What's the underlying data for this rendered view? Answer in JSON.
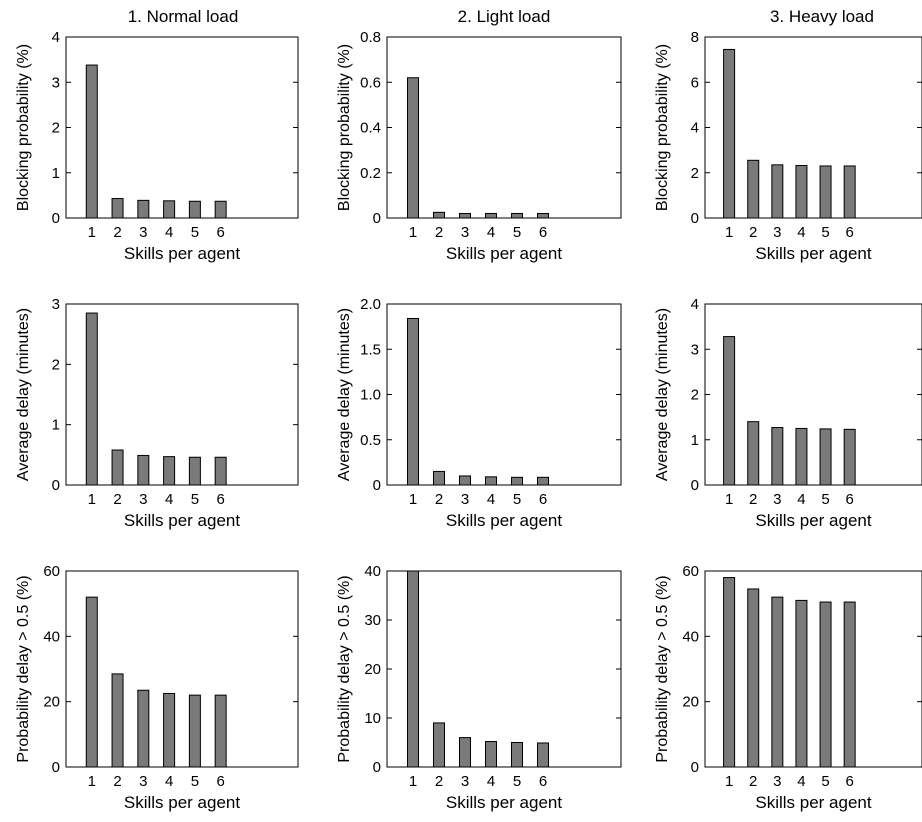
{
  "figure": {
    "column_titles": [
      "1. Normal load",
      "2. Light load",
      "3. Heavy load"
    ]
  },
  "chart_data": [
    {
      "type": "bar",
      "row": 0,
      "col": 0,
      "title": "1. Normal load",
      "xlabel": "Skills per agent",
      "ylabel": "Blocking probability (%)",
      "categories": [
        "1",
        "2",
        "3",
        "4",
        "5",
        "6"
      ],
      "values": [
        3.38,
        0.43,
        0.39,
        0.38,
        0.37,
        0.37
      ],
      "xlim": [
        0,
        9
      ],
      "ylim": [
        0,
        4
      ],
      "yticks": [
        "0",
        "1",
        "2",
        "3",
        "4"
      ],
      "grid": false
    },
    {
      "type": "bar",
      "row": 0,
      "col": 1,
      "title": "2. Light load",
      "xlabel": "Skills per agent",
      "ylabel": "Blocking probability (%)",
      "categories": [
        "1",
        "2",
        "3",
        "4",
        "5",
        "6"
      ],
      "values": [
        0.62,
        0.025,
        0.02,
        0.02,
        0.02,
        0.02
      ],
      "xlim": [
        0,
        9
      ],
      "ylim": [
        0,
        0.8
      ],
      "yticks": [
        "0",
        "0.2",
        "0.4",
        "0.6",
        "0.8"
      ],
      "grid": false
    },
    {
      "type": "bar",
      "row": 0,
      "col": 2,
      "title": "3. Heavy load",
      "xlabel": "Skills per agent",
      "ylabel": "Blocking probability (%)",
      "categories": [
        "1",
        "2",
        "3",
        "4",
        "5",
        "6"
      ],
      "values": [
        7.45,
        2.55,
        2.35,
        2.32,
        2.3,
        2.3
      ],
      "xlim": [
        0,
        9
      ],
      "ylim": [
        0,
        8
      ],
      "yticks": [
        "0",
        "2",
        "4",
        "6",
        "8"
      ],
      "grid": false
    },
    {
      "type": "bar",
      "row": 1,
      "col": 0,
      "xlabel": "Skills per agent",
      "ylabel": "Average delay (minutes)",
      "categories": [
        "1",
        "2",
        "3",
        "4",
        "5",
        "6"
      ],
      "values": [
        2.85,
        0.58,
        0.49,
        0.47,
        0.46,
        0.46
      ],
      "xlim": [
        0,
        9
      ],
      "ylim": [
        0,
        3
      ],
      "yticks": [
        "0",
        "1",
        "2",
        "3"
      ],
      "grid": false
    },
    {
      "type": "bar",
      "row": 1,
      "col": 1,
      "xlabel": "Skills per agent",
      "ylabel": "Average delay (minutes)",
      "categories": [
        "1",
        "2",
        "3",
        "4",
        "5",
        "6"
      ],
      "values": [
        1.84,
        0.15,
        0.1,
        0.09,
        0.085,
        0.085
      ],
      "xlim": [
        0,
        9
      ],
      "ylim": [
        0,
        2
      ],
      "yticks": [
        "0",
        "0.5",
        "1.0",
        "1.5",
        "2.0"
      ],
      "grid": false
    },
    {
      "type": "bar",
      "row": 1,
      "col": 2,
      "xlabel": "Skills per agent",
      "ylabel": "Average delay (minutes)",
      "categories": [
        "1",
        "2",
        "3",
        "4",
        "5",
        "6"
      ],
      "values": [
        3.28,
        1.4,
        1.27,
        1.25,
        1.24,
        1.23
      ],
      "xlim": [
        0,
        9
      ],
      "ylim": [
        0,
        4
      ],
      "yticks": [
        "0",
        "1",
        "2",
        "3",
        "4"
      ],
      "grid": false
    },
    {
      "type": "bar",
      "row": 2,
      "col": 0,
      "xlabel": "Skills per agent",
      "ylabel": "Probability delay > 0.5 (%)",
      "categories": [
        "1",
        "2",
        "3",
        "4",
        "5",
        "6"
      ],
      "values": [
        52,
        28.5,
        23.5,
        22.5,
        22,
        22
      ],
      "xlim": [
        0,
        9
      ],
      "ylim": [
        0,
        60
      ],
      "yticks": [
        "0",
        "20",
        "40",
        "60"
      ],
      "grid": false
    },
    {
      "type": "bar",
      "row": 2,
      "col": 1,
      "xlabel": "Skills per agent",
      "ylabel": "Probability delay > 0.5 (%)",
      "categories": [
        "1",
        "2",
        "3",
        "4",
        "5",
        "6"
      ],
      "values": [
        40,
        9,
        6,
        5.2,
        5,
        4.9
      ],
      "xlim": [
        0,
        9
      ],
      "ylim": [
        0,
        40
      ],
      "yticks": [
        "0",
        "10",
        "20",
        "30",
        "40"
      ],
      "grid": false
    },
    {
      "type": "bar",
      "row": 2,
      "col": 2,
      "xlabel": "Skills per agent",
      "ylabel": "Probability delay > 0.5 (%)",
      "categories": [
        "1",
        "2",
        "3",
        "4",
        "5",
        "6"
      ],
      "values": [
        58,
        54.5,
        52,
        51,
        50.5,
        50.5
      ],
      "xlim": [
        0,
        9
      ],
      "ylim": [
        0,
        60
      ],
      "yticks": [
        "0",
        "20",
        "40",
        "60"
      ],
      "grid": false
    }
  ]
}
